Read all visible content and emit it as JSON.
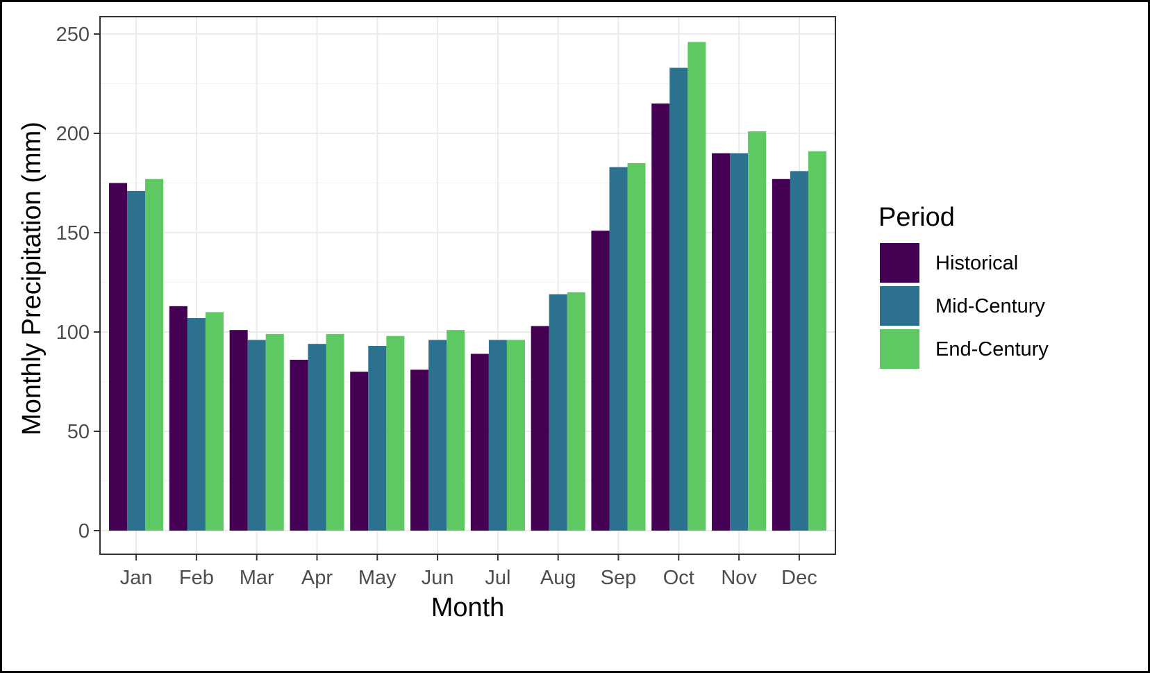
{
  "chart_data": {
    "type": "bar",
    "xlabel": "Month",
    "ylabel": "Monthly Precipitation (mm)",
    "categories": [
      "Jan",
      "Feb",
      "Mar",
      "Apr",
      "May",
      "Jun",
      "Jul",
      "Aug",
      "Sep",
      "Oct",
      "Nov",
      "Dec"
    ],
    "series": [
      {
        "name": "Historical",
        "color": "#440154",
        "values": [
          175,
          113,
          101,
          86,
          80,
          81,
          89,
          103,
          151,
          215,
          190,
          177
        ]
      },
      {
        "name": "Mid-Century",
        "color": "#2c728e",
        "values": [
          171,
          107,
          96,
          94,
          93,
          96,
          96,
          119,
          183,
          233,
          190,
          181
        ]
      },
      {
        "name": "End-Century",
        "color": "#5ec962",
        "values": [
          177,
          110,
          99,
          99,
          98,
          101,
          96,
          120,
          185,
          246,
          201,
          191
        ]
      }
    ],
    "ylim": [
      0,
      260
    ],
    "yticks": [
      0,
      50,
      100,
      150,
      200,
      250
    ],
    "grid": true,
    "legend": {
      "title": "Period",
      "position": "right"
    }
  }
}
